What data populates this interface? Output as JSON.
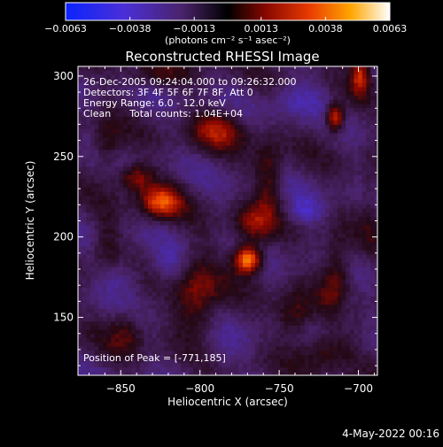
{
  "chart_data": {
    "type": "heatmap",
    "title": "Reconstructed RHESSI Image",
    "xlabel": "Heliocentric X (arcsec)",
    "ylabel": "Heliocentric Y (arcsec)",
    "xlim": [
      -877,
      -688
    ],
    "ylim": [
      114,
      306
    ],
    "xticks": [
      {
        "value": -850,
        "label": "−850"
      },
      {
        "value": -800,
        "label": "−800"
      },
      {
        "value": -750,
        "label": "−750"
      },
      {
        "value": -700,
        "label": "−700"
      }
    ],
    "yticks": [
      {
        "value": 150,
        "label": "150"
      },
      {
        "value": 200,
        "label": "200"
      },
      {
        "value": 250,
        "label": "250"
      },
      {
        "value": 300,
        "label": "300"
      }
    ],
    "colorbar": {
      "min": -0.0063,
      "max": 0.0063,
      "ticks": [
        {
          "value": -0.0063,
          "label": "−0.0063"
        },
        {
          "value": -0.0038,
          "label": "−0.0038"
        },
        {
          "value": -0.0013,
          "label": "−0.0013"
        },
        {
          "value": 0.0013,
          "label": "0.0013"
        },
        {
          "value": 0.0038,
          "label": "0.0038"
        },
        {
          "value": 0.0063,
          "label": "0.0063"
        }
      ],
      "unit_label": "(photons cm⁻² s⁻¹ asec⁻²)"
    },
    "annotations": [
      "26-Dec-2005 09:24:04.000 to 09:26:32.000",
      "Detectors: 3F 4F 5F 6F 7F 8F, Att 0",
      "Energy Range: 6.0 - 12.0 keV",
      "Clean      Total counts: 1.04E+04"
    ],
    "peak_label": "Position of Peak = [-771,185]",
    "peak": {
      "x": -771,
      "y": 185,
      "value": 0.0063
    },
    "sources": [
      {
        "x": -771,
        "y": 185,
        "sx": 6,
        "sy": 6,
        "value": 0.0063
      },
      {
        "x": -826,
        "y": 221,
        "sx": 9,
        "sy": 7,
        "value": 0.0044
      },
      {
        "x": -716,
        "y": 273,
        "sx": 4,
        "sy": 6,
        "value": 0.0046
      },
      {
        "x": -700,
        "y": 300,
        "sx": 4,
        "sy": 9,
        "value": 0.0036
      },
      {
        "x": -790,
        "y": 265,
        "sx": 12,
        "sy": 8,
        "value": 0.0028
      },
      {
        "x": -803,
        "y": 162,
        "sx": 10,
        "sy": 18,
        "value": 0.0028
      },
      {
        "x": -742,
        "y": 150,
        "sx": 8,
        "sy": 10,
        "value": 0.0022
      },
      {
        "x": -715,
        "y": 175,
        "sx": 7,
        "sy": 16,
        "value": 0.0024
      },
      {
        "x": -758,
        "y": 235,
        "sx": 6,
        "sy": 18,
        "value": 0.0022
      },
      {
        "x": -860,
        "y": 255,
        "sx": 6,
        "sy": 10,
        "value": 0.0018
      },
      {
        "x": -848,
        "y": 140,
        "sx": 8,
        "sy": 10,
        "value": 0.0018
      },
      {
        "x": -722,
        "y": 128,
        "sx": 12,
        "sy": 8,
        "value": 0.002
      },
      {
        "x": -832,
        "y": 300,
        "sx": 14,
        "sy": 6,
        "value": 0.0014
      },
      {
        "x": -768,
        "y": 207,
        "sx": 8,
        "sy": 8,
        "value": 0.0026
      },
      {
        "x": -694,
        "y": 220,
        "sx": 4,
        "sy": 20,
        "value": 0.001
      },
      {
        "x": -860,
        "y": 195,
        "sx": 6,
        "sy": 12,
        "value": 0.0014
      },
      {
        "x": -842,
        "y": 236,
        "sx": 8,
        "sy": 6,
        "value": 0.003
      },
      {
        "x": -735,
        "y": 215,
        "sx": 8,
        "sy": 6,
        "value": -0.0018
      },
      {
        "x": -850,
        "y": 175,
        "sx": 10,
        "sy": 8,
        "value": -0.0012
      },
      {
        "x": -790,
        "y": 130,
        "sx": 14,
        "sy": 8,
        "value": -0.001
      },
      {
        "x": -740,
        "y": 285,
        "sx": 12,
        "sy": 8,
        "value": -0.0016
      },
      {
        "x": -710,
        "y": 155,
        "sx": 6,
        "sy": 8,
        "value": -0.001
      },
      {
        "x": -820,
        "y": 180,
        "sx": 8,
        "sy": 8,
        "value": -0.0014
      }
    ]
  },
  "footer": {
    "date": "4-May-2022 00:16"
  }
}
